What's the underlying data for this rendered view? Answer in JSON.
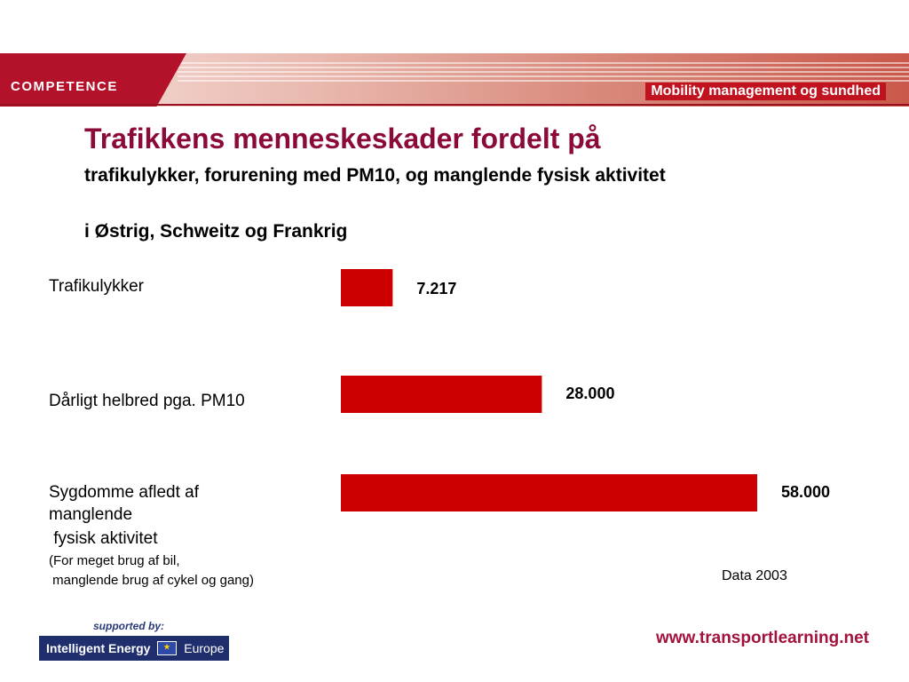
{
  "header": {
    "logo": "COMPETENCE",
    "subtitle": "Mobility management og sundhed"
  },
  "title": "Trafikkens menneskeskader fordelt på",
  "subtitle": "trafikulykker, forurening med PM10, og manglende fysisk aktivitet",
  "subtitle2": "i Østrig, Schweitz og Frankrig",
  "labels": {
    "cat1": "Trafikulykker",
    "cat2": "Dårligt helbred pga. PM10",
    "cat3_line1": "Sygdomme afledt af",
    "cat3_line2": "manglende",
    "cat3_line3": " fysisk aktivitet",
    "cat3_note1": "(For meget brug af bil,",
    "cat3_note2": " manglende brug af cykel og gang)"
  },
  "chart_data": {
    "type": "bar",
    "orientation": "horizontal",
    "categories": [
      "Trafikulykker",
      "Dårligt helbred pga. PM10",
      "Sygdomme afledt af manglende fysisk aktivitet"
    ],
    "values": [
      7217,
      28000,
      58000
    ],
    "value_labels": [
      "7.217",
      "28.000",
      "58.000"
    ],
    "color": "#cc0000"
  },
  "data_source": "Data 2003",
  "footer": {
    "supported_by": "supported by:",
    "logo_main": "Intelligent Energy",
    "logo_europe": "Europe",
    "url": "www.transportlearning.net"
  },
  "colors": {
    "title": "#8b0a3a",
    "bar": "#cc0000",
    "brand": "#b3122a"
  }
}
